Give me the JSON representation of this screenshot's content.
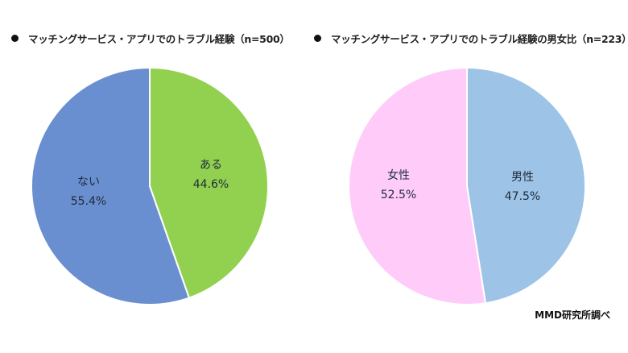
{
  "charts": {
    "left": {
      "title": "マッチングサービス・アプリでのトラブル経験（n=500）",
      "slices": [
        {
          "label": "ある",
          "value_text": "44.6%",
          "color": "#92d050"
        },
        {
          "label": "ない",
          "value_text": "55.4%",
          "color": "#6a8fd0"
        }
      ]
    },
    "right": {
      "title": "マッチングサービス・アプリでのトラブル経験の男女比（n=223）",
      "slices": [
        {
          "label": "男性",
          "value_text": "47.5%",
          "color": "#9dc3e6"
        },
        {
          "label": "女性",
          "value_text": "52.5%",
          "color": "#ffccf9"
        }
      ]
    }
  },
  "source": "MMD研究所調べ",
  "chart_data": [
    {
      "type": "pie",
      "title": "マッチングサービス・アプリでのトラブル経験（n=500）",
      "categories": [
        "ある",
        "ない"
      ],
      "values": [
        44.6,
        55.4
      ],
      "colors": [
        "#92d050",
        "#6a8fd0"
      ],
      "unit": "%",
      "n": 500,
      "start_angle": "12 o'clock, clockwise",
      "legend": "none (labels inside slices)"
    },
    {
      "type": "pie",
      "title": "マッチングサービス・アプリでのトラブル経験の男女比（n=223）",
      "categories": [
        "男性",
        "女性"
      ],
      "values": [
        47.5,
        52.5
      ],
      "colors": [
        "#9dc3e6",
        "#ffccf9"
      ],
      "unit": "%",
      "n": 223,
      "start_angle": "12 o'clock, clockwise",
      "legend": "none (labels inside slices)"
    }
  ]
}
